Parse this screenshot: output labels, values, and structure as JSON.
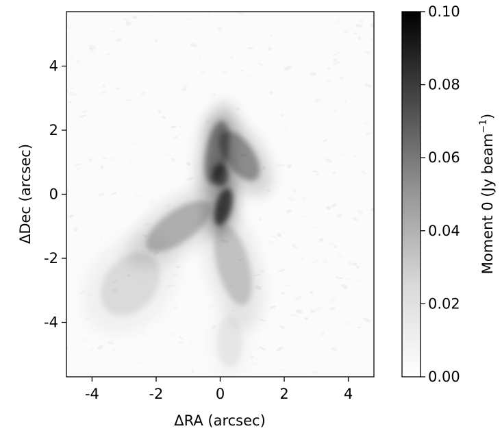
{
  "chart_data": {
    "type": "heatmap",
    "title": "",
    "xlabel": "ΔRA (arcsec)",
    "ylabel": "ΔDec (arcsec)",
    "xlim": [
      -4.8,
      4.8
    ],
    "ylim": [
      -5.7,
      5.7
    ],
    "x_ticks": [
      -4,
      -2,
      0,
      2,
      4
    ],
    "y_ticks": [
      -4,
      -2,
      0,
      2,
      4
    ],
    "x_tick_labels": [
      "-4",
      "-2",
      "0",
      "2",
      "4"
    ],
    "y_tick_labels": [
      "-4",
      "-2",
      "0",
      "2",
      "4"
    ],
    "grid": false,
    "colormap": "Greys",
    "colorbar": {
      "label": "Moment 0 (Jy beam",
      "label_superscript": "−1",
      "label_close": ")",
      "range": [
        0.0,
        0.1
      ],
      "ticks": [
        0.0,
        0.02,
        0.04,
        0.06,
        0.08,
        0.1
      ],
      "tick_labels": [
        "0.00",
        "0.02",
        "0.04",
        "0.06",
        "0.08",
        "0.10"
      ],
      "position": "right"
    },
    "emission_components": [
      {
        "name_note": "north-east lobe",
        "x": 0.6,
        "y": 1.2,
        "sx": 0.45,
        "sy": 0.9,
        "angle": -35,
        "peak": 0.045
      },
      {
        "name_note": "north lobe",
        "x": -0.1,
        "y": 1.3,
        "sx": 0.35,
        "sy": 1.0,
        "angle": 10,
        "peak": 0.05
      },
      {
        "name_note": "north core",
        "x": 0.0,
        "y": 0.6,
        "sx": 0.25,
        "sy": 0.35,
        "angle": 0,
        "peak": 0.07
      },
      {
        "name_note": "central core",
        "x": 0.1,
        "y": -0.4,
        "sx": 0.25,
        "sy": 0.6,
        "angle": 15,
        "peak": 0.085
      },
      {
        "name_note": "south-west arm",
        "x": -1.3,
        "y": -1.0,
        "sx": 0.5,
        "sy": 1.2,
        "angle": 55,
        "peak": 0.03
      },
      {
        "name_note": "south-west faint",
        "x": -2.8,
        "y": -2.8,
        "sx": 0.8,
        "sy": 1.1,
        "angle": 40,
        "peak": 0.012
      },
      {
        "name_note": "south arm",
        "x": 0.4,
        "y": -2.2,
        "sx": 0.5,
        "sy": 1.3,
        "angle": -15,
        "peak": 0.022
      },
      {
        "name_note": "south tail",
        "x": 0.3,
        "y": -4.6,
        "sx": 0.4,
        "sy": 0.8,
        "angle": 0,
        "peak": 0.008
      }
    ]
  }
}
